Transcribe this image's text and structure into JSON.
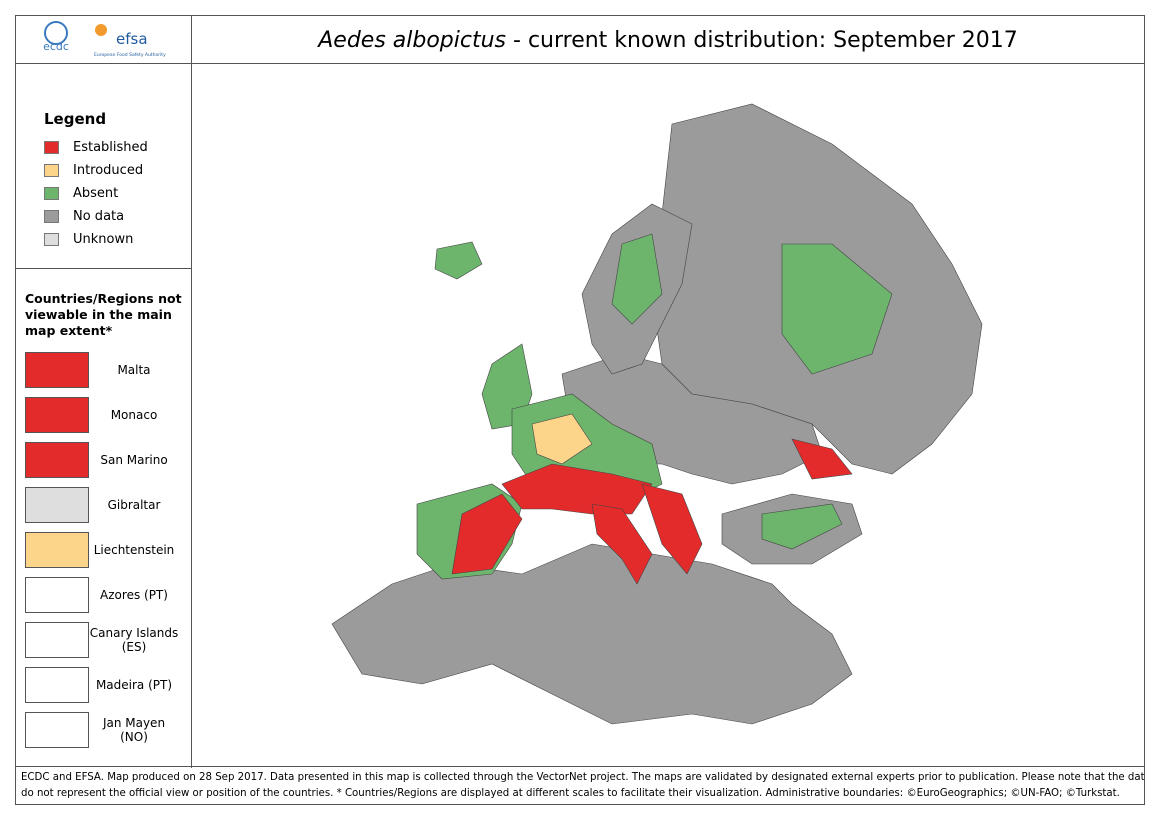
{
  "header": {
    "logos": [
      "ecdc",
      "efsa"
    ],
    "efsa_subtitle": "European Food Safety Authority",
    "title": {
      "species": "Aedes albopictus",
      "text": "- current known distribution: September 2017"
    }
  },
  "legend": {
    "title": "Legend",
    "items": [
      {
        "label": "Established",
        "color": "#e32b2b"
      },
      {
        "label": "Introduced",
        "color": "#fdd58a"
      },
      {
        "label": "Absent",
        "color": "#6db56d"
      },
      {
        "label": "No data",
        "color": "#9b9b9b"
      },
      {
        "label": "Unknown",
        "color": "#dedede"
      }
    ]
  },
  "insets": {
    "title": "Countries/Regions not viewable in the main map extent*",
    "items": [
      "Malta",
      "Monaco",
      "San Marino",
      "Gibraltar",
      "Liechtenstein",
      "Azores (PT)",
      "Canary Islands (ES)",
      "Madeira (PT)",
      "Jan Mayen (NO)"
    ]
  },
  "footer": {
    "lines": [
      "ECDC and EFSA. Map produced on 28 Sep 2017. Data presented in this map is collected through the VectorNet project. The maps are validated by designated external experts prior to publication. Please note that the data",
      "do not represent the official view or position of the countries. * Countries/Regions are displayed at different scales to facilitate their visualization. Administrative boundaries: ©EuroGeographics; ©UN-FAO; ©Turkstat."
    ]
  }
}
